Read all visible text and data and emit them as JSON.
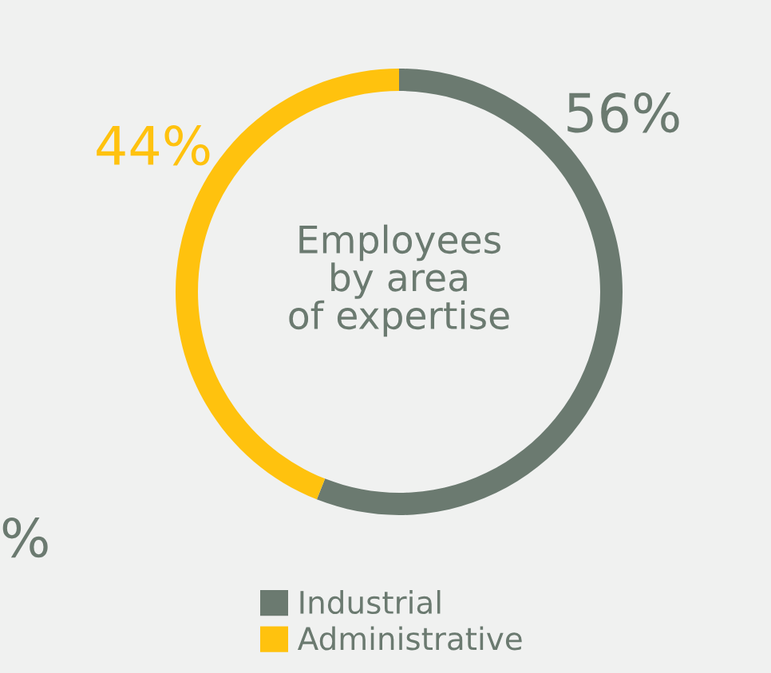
{
  "chart_data": {
    "type": "donut",
    "title": "Employees\nby area\nof expertise",
    "categories": [
      "Industrial",
      "Administrative"
    ],
    "values": [
      56,
      44
    ],
    "colors": [
      "#6b7a70",
      "#ffc20e"
    ],
    "value_labels": [
      "56%",
      "44%"
    ],
    "legend": "bottom",
    "annotations": [
      "%"
    ]
  }
}
